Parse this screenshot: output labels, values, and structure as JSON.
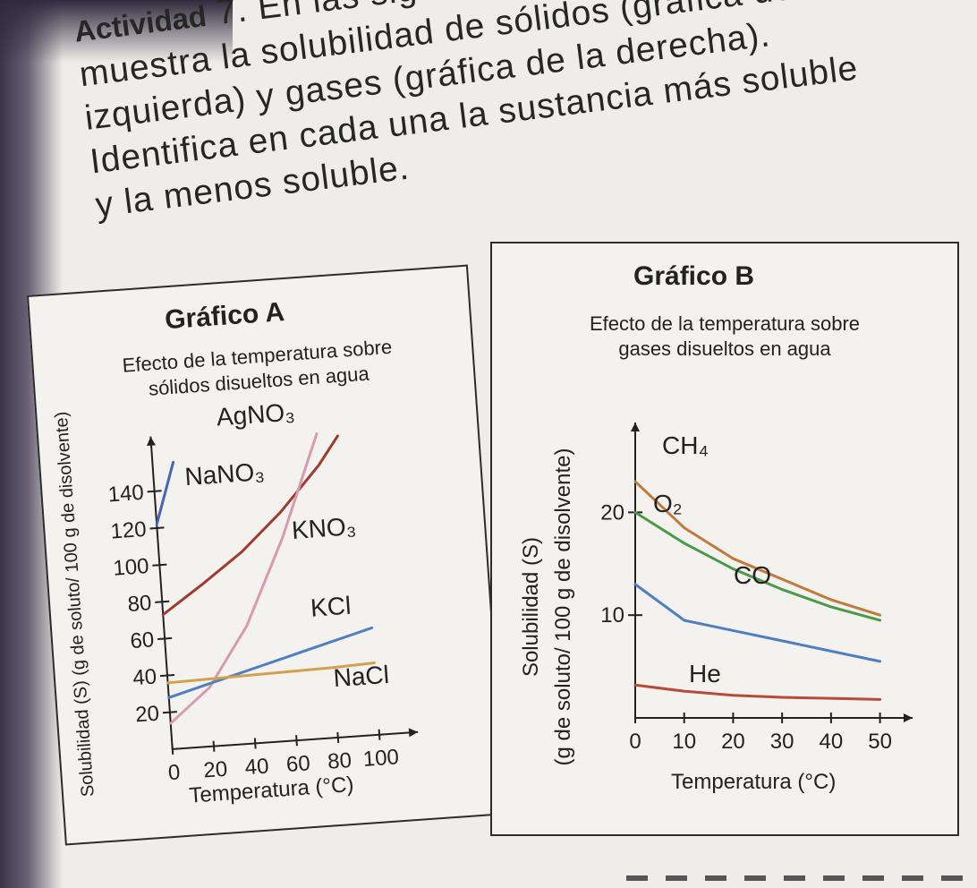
{
  "intro": {
    "activity_label": "Actividad",
    "activity_number": "7.",
    "line1": "En las siguientes gráficas se",
    "line2": "muestra la solubilidad de sólidos (gráfica de la",
    "line3": "izquierda) y gases (gráfica de la derecha).",
    "line4": "Identifica en cada una la sustancia más soluble",
    "line5": "y la menos soluble."
  },
  "graphA": {
    "heading": "Gráfico A",
    "subtitle_line1": "Efecto de la temperatura sobre",
    "subtitle_line2": "sólidos disueltos en agua",
    "ylabel": "Solubilidad (S) (g de soluto/ 100 g de disolvente)",
    "xlabel": "Temperatura (°C)"
  },
  "graphB": {
    "heading": "Gráfico B",
    "subtitle_line1": "Efecto de la temperatura sobre",
    "subtitle_line2": "gases disueltos en agua",
    "ylabel_line1": "Solubilidad (S)",
    "ylabel_line2": "(g de soluto/ 100 g de disolvente)",
    "xlabel": "Temperatura (°C)"
  },
  "colors": {
    "AgNO3": "#4a62b8",
    "NaNO3": "#9e3a2e",
    "KNO3": "#d89aae",
    "KCl": "#4f7fc0",
    "NaCl": "#d4a050",
    "CH4": "#c07a3a",
    "O2": "#4a9a4a",
    "CO": "#4f7fc0",
    "He": "#b84a3a"
  },
  "chart_data": [
    {
      "type": "line",
      "title": "Efecto de la temperatura sobre sólidos disueltos en agua",
      "xlabel": "Temperatura (°C)",
      "ylabel": "Solubilidad (S) (g de soluto/ 100 g de disolvente)",
      "x_ticks": [
        "0",
        "20",
        "40",
        "60",
        "80",
        "100"
      ],
      "y_ticks": [
        "20",
        "40",
        "60",
        "80",
        "100",
        "120",
        "140"
      ],
      "xlim": [
        0,
        110
      ],
      "ylim": [
        0,
        160
      ],
      "series": [
        {
          "name": "AgNO3",
          "label": "AgNO₃",
          "x": [
            0,
            10
          ],
          "y": [
            122,
            155
          ]
        },
        {
          "name": "NaNO3",
          "label": "NaNO₃",
          "x": [
            0,
            20,
            40,
            60,
            80,
            90
          ],
          "y": [
            73,
            88,
            104,
            124,
            148,
            163
          ]
        },
        {
          "name": "KNO3",
          "label": "KNO₃",
          "x": [
            0,
            20,
            40,
            60,
            80
          ],
          "y": [
            14,
            32,
            64,
            110,
            165
          ]
        },
        {
          "name": "KCl",
          "label": "KCl",
          "x": [
            0,
            20,
            40,
            60,
            80,
            100
          ],
          "y": [
            28,
            34,
            40,
            46,
            52,
            58
          ]
        },
        {
          "name": "NaCl",
          "label": "NaCl",
          "x": [
            0,
            20,
            40,
            60,
            80,
            100
          ],
          "y": [
            36,
            36.5,
            37,
            37.5,
            38,
            39
          ]
        }
      ]
    },
    {
      "type": "line",
      "title": "Efecto de la temperatura sobre gases disueltos en agua",
      "xlabel": "Temperatura (°C)",
      "ylabel": "Solubilidad (S) (g de soluto/ 100 g de disolvente)",
      "x_ticks": [
        "0",
        "10",
        "20",
        "30",
        "40",
        "50"
      ],
      "y_ticks": [
        "10",
        "20"
      ],
      "xlim": [
        0,
        53
      ],
      "ylim": [
        0,
        27
      ],
      "series": [
        {
          "name": "CH4",
          "label": "CH₄",
          "x": [
            0,
            10,
            20,
            30,
            40,
            50
          ],
          "y": [
            23,
            18.5,
            15.5,
            13.5,
            11.5,
            10
          ]
        },
        {
          "name": "O2",
          "label": "O₂",
          "x": [
            0,
            10,
            20,
            30,
            40,
            50
          ],
          "y": [
            20,
            17,
            14.5,
            12.5,
            10.8,
            9.5
          ]
        },
        {
          "name": "CO",
          "label": "CO",
          "x": [
            0,
            10,
            20,
            30,
            40,
            50
          ],
          "y": [
            13,
            9.5,
            8.5,
            7.5,
            6.5,
            5.5
          ]
        },
        {
          "name": "He",
          "label": "He",
          "x": [
            0,
            10,
            20,
            30,
            40,
            50
          ],
          "y": [
            3.2,
            2.6,
            2.2,
            2.0,
            1.9,
            1.8
          ]
        }
      ]
    }
  ]
}
